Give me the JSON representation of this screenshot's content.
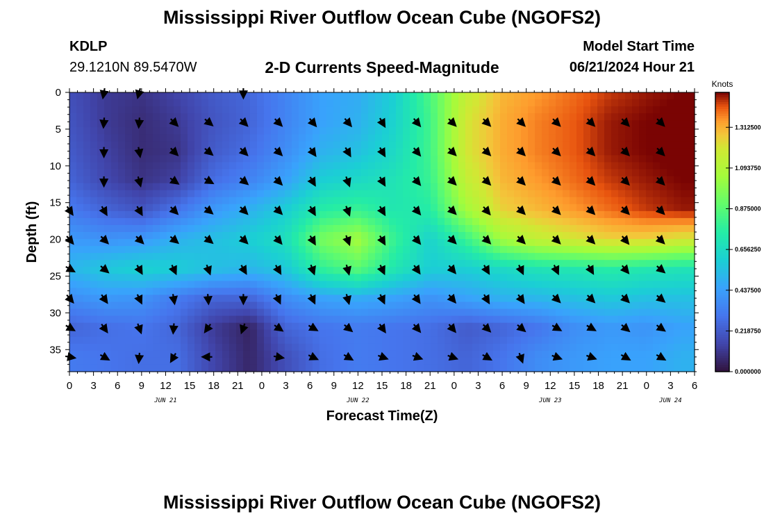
{
  "header": {
    "title": "Mississippi River Outflow Ocean Cube (NGOFS2)",
    "station_id": "KDLP",
    "station_location": "29.1210N  89.5470W",
    "subtitle": "2-D Currents Speed-Magnitude",
    "model_start_label": "Model Start Time",
    "model_start_value": "06/21/2024 Hour 21"
  },
  "footer": {
    "title": "Mississippi River Outflow Ocean Cube (NGOFS2)"
  },
  "chart_data": {
    "type": "heatmap",
    "title": "2-D Currents Speed-Magnitude",
    "xlabel": "Forecast Time(Z)",
    "ylabel": "Depth (ft)",
    "x_tick_labels": [
      "0",
      "3",
      "6",
      "9",
      "12",
      "15",
      "18",
      "21",
      "0",
      "3",
      "6",
      "9",
      "12",
      "15",
      "18",
      "21",
      "0",
      "3",
      "6",
      "9",
      "12",
      "15",
      "18",
      "21",
      "0",
      "3",
      "6"
    ],
    "x_range_hours_from_jun21_00z": [
      0,
      78
    ],
    "date_labels": [
      {
        "text": "JUN 21",
        "hour": 12
      },
      {
        "text": "JUN 22",
        "hour": 36
      },
      {
        "text": "JUN 23",
        "hour": 60
      },
      {
        "text": "JUN 24",
        "hour": 75
      }
    ],
    "y_ticks": [
      0,
      5,
      10,
      15,
      20,
      25,
      30,
      35
    ],
    "y_range_ft": [
      0,
      38
    ],
    "y_inverted": true,
    "colorbar": {
      "unit": "Knots",
      "range": [
        0.0,
        1.5
      ],
      "tick_values": [
        0.0,
        0.21875,
        0.4375,
        0.65625,
        0.875,
        1.09375,
        1.3125
      ],
      "tick_labels": [
        "0.000000",
        "0.218750",
        "0.437500",
        "0.656250",
        "0.875000",
        "1.093750",
        "1.312500"
      ],
      "colormap": "turbo"
    },
    "depth_levels_ft": [
      0,
      4,
      8,
      12,
      16,
      20,
      24,
      28,
      32,
      36
    ],
    "time_hours": [
      0,
      4.5,
      9,
      13.5,
      18,
      22.5,
      27,
      31.5,
      36,
      40.5,
      45,
      49.5,
      54,
      58.5,
      63,
      67.5,
      72,
      76.5
    ],
    "speed_knots": [
      [
        0.18,
        0.12,
        0.1,
        0.15,
        0.22,
        0.26,
        0.35,
        0.45,
        0.48,
        0.6,
        0.85,
        1.15,
        1.3,
        1.35,
        1.4,
        1.45,
        1.48,
        1.5
      ],
      [
        0.2,
        0.12,
        0.08,
        0.12,
        0.2,
        0.25,
        0.35,
        0.45,
        0.5,
        0.62,
        0.82,
        1.2,
        1.32,
        1.38,
        1.42,
        1.48,
        1.5,
        1.52
      ],
      [
        0.22,
        0.14,
        0.08,
        0.1,
        0.22,
        0.28,
        0.38,
        0.5,
        0.55,
        0.65,
        0.82,
        1.2,
        1.32,
        1.38,
        1.42,
        1.48,
        1.5,
        1.52
      ],
      [
        0.25,
        0.16,
        0.1,
        0.14,
        0.28,
        0.35,
        0.45,
        0.6,
        0.65,
        0.7,
        0.8,
        1.15,
        1.3,
        1.35,
        1.4,
        1.45,
        1.48,
        1.5
      ],
      [
        0.32,
        0.25,
        0.2,
        0.3,
        0.42,
        0.5,
        0.6,
        0.75,
        0.8,
        0.72,
        0.75,
        1.05,
        1.25,
        1.3,
        1.35,
        1.4,
        1.45,
        1.48
      ],
      [
        0.42,
        0.4,
        0.42,
        0.5,
        0.55,
        0.6,
        0.68,
        0.95,
        1.05,
        0.8,
        0.62,
        0.8,
        1.05,
        1.15,
        1.2,
        1.25,
        1.25,
        1.2
      ],
      [
        0.52,
        0.58,
        0.62,
        0.6,
        0.55,
        0.52,
        0.58,
        0.78,
        0.88,
        0.72,
        0.6,
        0.6,
        0.65,
        0.7,
        0.72,
        0.75,
        0.72,
        0.7
      ],
      [
        0.38,
        0.42,
        0.4,
        0.32,
        0.25,
        0.25,
        0.38,
        0.45,
        0.48,
        0.45,
        0.4,
        0.45,
        0.5,
        0.52,
        0.55,
        0.58,
        0.55,
        0.55
      ],
      [
        0.25,
        0.28,
        0.3,
        0.25,
        0.12,
        0.05,
        0.25,
        0.3,
        0.32,
        0.3,
        0.28,
        0.22,
        0.25,
        0.3,
        0.38,
        0.42,
        0.4,
        0.45
      ],
      [
        0.32,
        0.3,
        0.28,
        0.28,
        0.15,
        0.06,
        0.18,
        0.28,
        0.32,
        0.3,
        0.28,
        0.25,
        0.3,
        0.38,
        0.42,
        0.45,
        0.45,
        0.5
      ]
    ],
    "arrow_depths_ft": [
      0,
      4,
      8,
      12,
      16,
      20,
      24,
      28,
      32,
      36
    ],
    "arrow_times_hours": [
      0,
      4.3,
      8.7,
      13,
      17.3,
      21.7,
      26,
      30.3,
      34.7,
      39,
      43.3,
      47.7,
      52,
      56.3,
      60.7,
      65,
      69.3,
      73.7,
      78
    ],
    "arrow_direction_deg": [
      [
        null,
        190,
        195,
        null,
        null,
        180,
        null,
        null,
        null,
        null,
        null,
        null,
        null,
        null,
        null,
        null,
        null,
        null,
        null
      ],
      [
        null,
        185,
        185,
        135,
        130,
        135,
        135,
        140,
        140,
        150,
        140,
        135,
        135,
        135,
        135,
        135,
        135,
        135,
        null
      ],
      [
        null,
        180,
        170,
        135,
        130,
        135,
        135,
        145,
        150,
        150,
        140,
        135,
        135,
        135,
        135,
        135,
        135,
        135,
        null
      ],
      [
        null,
        180,
        165,
        125,
        120,
        130,
        135,
        150,
        160,
        150,
        140,
        135,
        135,
        135,
        135,
        135,
        135,
        135,
        null
      ],
      [
        145,
        150,
        150,
        135,
        130,
        135,
        135,
        150,
        160,
        150,
        140,
        135,
        140,
        135,
        135,
        135,
        135,
        135,
        null
      ],
      [
        140,
        135,
        135,
        130,
        130,
        135,
        140,
        150,
        160,
        150,
        140,
        135,
        135,
        135,
        135,
        135,
        140,
        135,
        null
      ],
      [
        120,
        130,
        150,
        155,
        160,
        150,
        150,
        160,
        165,
        155,
        145,
        140,
        150,
        155,
        155,
        150,
        140,
        130,
        null
      ],
      [
        140,
        145,
        155,
        170,
        175,
        180,
        155,
        155,
        165,
        155,
        145,
        140,
        150,
        145,
        135,
        135,
        135,
        130,
        null
      ],
      [
        120,
        145,
        160,
        185,
        215,
        200,
        125,
        120,
        130,
        145,
        140,
        140,
        135,
        130,
        120,
        120,
        130,
        125,
        null
      ],
      [
        100,
        120,
        185,
        210,
        270,
        null,
        100,
        115,
        120,
        110,
        110,
        110,
        120,
        160,
        110,
        110,
        120,
        120,
        null
      ]
    ]
  }
}
